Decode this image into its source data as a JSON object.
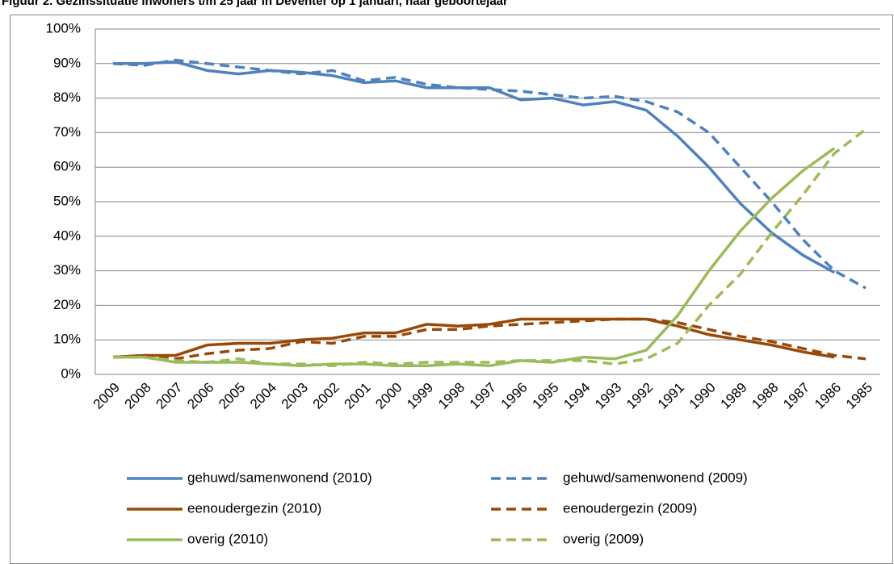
{
  "chart_data": {
    "type": "line",
    "title": "Figuur 2. Gezinssituatie inwoners t/m 25 jaar in Deventer op 1 januari, naar geboortejaar",
    "categories": [
      "2009",
      "2008",
      "2007",
      "2006",
      "2005",
      "2004",
      "2003",
      "2002",
      "2001",
      "2000",
      "1999",
      "1998",
      "1997",
      "1996",
      "1995",
      "1994",
      "1993",
      "1992",
      "1991",
      "1990",
      "1989",
      "1988",
      "1987",
      "1986",
      "1985"
    ],
    "series": [
      {
        "name": "gehuwd/samenwonend (2010)",
        "color": "#4f81bd",
        "style": "solid",
        "values": [
          90,
          90,
          90.5,
          88,
          87,
          88,
          87.5,
          86.5,
          84.5,
          85,
          83,
          83,
          83,
          79.5,
          80,
          78,
          79,
          76.5,
          69,
          60,
          49.5,
          41,
          34.5,
          29.5,
          null
        ]
      },
      {
        "name": "gehuwd/samenwonend (2009)",
        "color": "#4f81bd",
        "style": "dashed",
        "values": [
          90,
          89.5,
          91,
          90,
          89,
          88,
          87,
          88,
          85,
          86,
          84,
          83,
          82.5,
          82,
          81,
          80,
          80.5,
          79,
          76,
          70,
          60,
          50,
          39,
          30,
          25
        ]
      },
      {
        "name": "eenoudergezin (2010)",
        "color": "#984807",
        "style": "solid",
        "values": [
          5,
          5.5,
          5.5,
          8.5,
          9,
          9,
          10,
          10.5,
          12,
          12,
          14.5,
          14,
          14.5,
          16,
          16,
          16,
          16,
          16,
          14,
          11.5,
          10,
          8.5,
          6.5,
          5,
          null
        ]
      },
      {
        "name": "eenoudergezin (2009)",
        "color": "#984807",
        "style": "dashed",
        "values": [
          5,
          5.5,
          4.5,
          6,
          7,
          7.5,
          9.5,
          9,
          11,
          11,
          13,
          13,
          14,
          14.5,
          15,
          15.5,
          16,
          16,
          15,
          13,
          11,
          9.5,
          7.5,
          5.5,
          4.5
        ]
      },
      {
        "name": "overig (2010)",
        "color": "#9bbb59",
        "style": "solid",
        "values": [
          5,
          5,
          3.5,
          3.5,
          3.5,
          3,
          2.5,
          3,
          3,
          2.5,
          2.5,
          3,
          2.5,
          4,
          3.5,
          5,
          4.5,
          7,
          17,
          30,
          41.5,
          51,
          59,
          65.5,
          null
        ]
      },
      {
        "name": "overig (2009)",
        "color": "#9bbb59",
        "style": "dashed",
        "values": [
          5,
          5,
          4,
          3.5,
          4.5,
          3,
          3,
          2.5,
          3.5,
          3,
          3.5,
          3.5,
          3.5,
          4,
          4,
          4,
          3,
          4.5,
          9,
          20,
          29,
          41,
          52,
          64,
          71
        ]
      }
    ],
    "ylim": [
      0,
      100
    ],
    "yticks": [
      {
        "value": 0,
        "label": "0%"
      },
      {
        "value": 10,
        "label": "10%"
      },
      {
        "value": 20,
        "label": "20%"
      },
      {
        "value": 30,
        "label": "30%"
      },
      {
        "value": 40,
        "label": "40%"
      },
      {
        "value": 50,
        "label": "50%"
      },
      {
        "value": 60,
        "label": "60%"
      },
      {
        "value": 70,
        "label": "70%"
      },
      {
        "value": 80,
        "label": "80%"
      },
      {
        "value": 90,
        "label": "90%"
      },
      {
        "value": 100,
        "label": "100%"
      }
    ],
    "grid": true,
    "legend": "bottom"
  }
}
